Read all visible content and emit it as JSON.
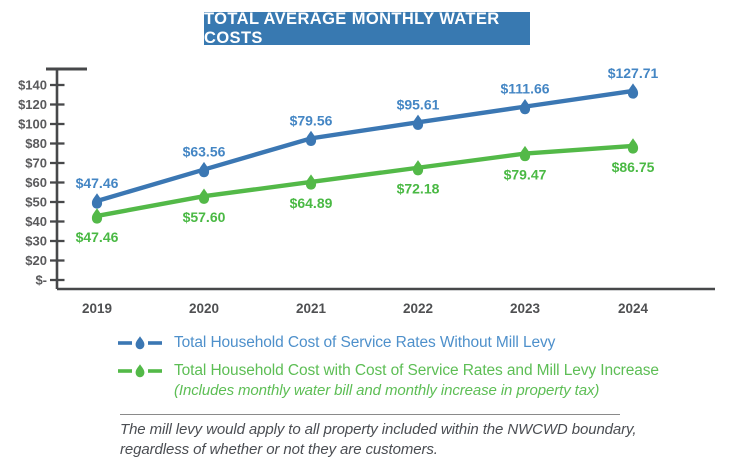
{
  "title": "TOTAL AVERAGE MONTHLY WATER COSTS",
  "chart_data": {
    "type": "line",
    "x": [
      2019,
      2020,
      2021,
      2022,
      2023,
      2024
    ],
    "x_tick_labels": [
      "2019",
      "2020",
      "2021",
      "2022",
      "2023",
      "2024"
    ],
    "y_axis": {
      "tick_labels": [
        "$140",
        "$120",
        "$100",
        "$80",
        "$70",
        "$60",
        "$50",
        "$40",
        "$30",
        "$20",
        "$-"
      ],
      "tick_values": [
        140,
        120,
        100,
        80,
        70,
        60,
        50,
        40,
        30,
        20,
        0
      ]
    },
    "grid": false,
    "marker": "water-drop-icon",
    "legend_position": "bottom",
    "series": [
      {
        "name": "Total Household Cost of Service Rates Without Mill Levy",
        "values": [
          47.46,
          63.56,
          79.56,
          95.61,
          111.66,
          127.71
        ],
        "point_labels": [
          "$47.46",
          "$63.56",
          "$79.56",
          "$95.61",
          "$111.66",
          "$127.71"
        ],
        "label_position": "above",
        "color": "#3b77b3",
        "label_color": "#4486c4",
        "legend_text_color": "#4e90cb"
      },
      {
        "name": "Total Household Cost with Cost of Service Rates and Mill Levy Increase",
        "note": "(Includes monthly water bill and monthly increase in property tax)",
        "values": [
          47.46,
          57.6,
          64.89,
          72.18,
          79.47,
          86.75
        ],
        "point_labels": [
          "$47.46",
          "$57.60",
          "$64.89",
          "$72.18",
          "$79.47",
          "$86.75"
        ],
        "label_position": "below",
        "color": "#53b948",
        "label_color": "#4ab944",
        "legend_text_color": "#5dbe55"
      }
    ]
  },
  "footnote": {
    "line1": "The mill levy would apply to all property included within the NWCWD boundary,",
    "line2": "regardless of whether or not they are customers."
  },
  "colors": {
    "title_bg": "#3879b1",
    "title_text": "#ffffff",
    "axis": "#47484a",
    "y_tick_label": "#5a5a5c",
    "x_tick_label": "#4f5052",
    "footnote_text": "#4b4e53",
    "divider": "#8a8a8a"
  }
}
